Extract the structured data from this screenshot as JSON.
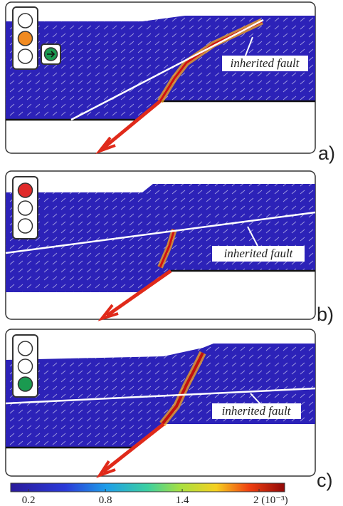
{
  "panels": [
    {
      "letter": "a)",
      "label": "inherited fault"
    },
    {
      "letter": "b)",
      "label": "inherited fault"
    },
    {
      "letter": "c)",
      "label": "inherited fault"
    }
  ],
  "colorbar": {
    "range": [
      0.06,
      2.2
    ],
    "ticks": [
      0.2,
      0.8,
      1.4,
      {
        "value": 2,
        "label": "2 (10⁻³)"
      }
    ]
  }
}
